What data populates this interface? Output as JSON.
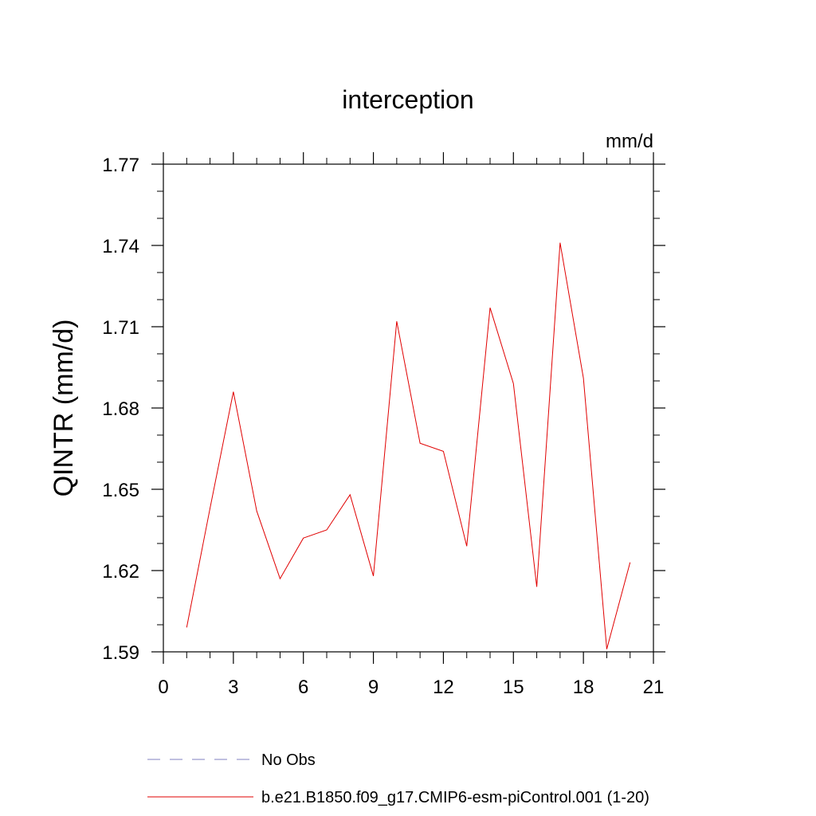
{
  "chart_data": {
    "type": "line",
    "title": "interception",
    "units_label": "mm/d",
    "ylabel": "QINTR  (mm/d)",
    "xlabel": "",
    "xlim": [
      0,
      21
    ],
    "ylim": [
      1.59,
      1.77
    ],
    "xticks": [
      0,
      3,
      6,
      9,
      12,
      15,
      18,
      21
    ],
    "xtick_labels": [
      "0",
      "3",
      "6",
      "9",
      "12",
      "15",
      "18",
      "21"
    ],
    "yticks": [
      1.59,
      1.62,
      1.65,
      1.68,
      1.71,
      1.74,
      1.77
    ],
    "ytick_labels": [
      "1.59",
      "1.62",
      "1.65",
      "1.68",
      "1.71",
      "1.74",
      "1.77"
    ],
    "x_minor_step": 1,
    "y_minor_step": 0.01,
    "grid": false,
    "legend_position": "bottom-left",
    "series": [
      {
        "name": "No Obs",
        "color": "#8080c0",
        "dash": "dashed",
        "x": [],
        "values": []
      },
      {
        "name": "b.e21.B1850.f09_g17.CMIP6-esm-piControl.001 (1-20)",
        "color": "#e00000",
        "dash": "solid",
        "x": [
          1,
          2,
          3,
          4,
          5,
          6,
          7,
          8,
          9,
          10,
          11,
          12,
          13,
          14,
          15,
          16,
          17,
          18,
          19,
          20
        ],
        "values": [
          1.599,
          1.643,
          1.686,
          1.642,
          1.617,
          1.632,
          1.635,
          1.648,
          1.618,
          1.712,
          1.667,
          1.664,
          1.629,
          1.717,
          1.689,
          1.614,
          1.741,
          1.691,
          1.591,
          1.623
        ]
      }
    ]
  }
}
